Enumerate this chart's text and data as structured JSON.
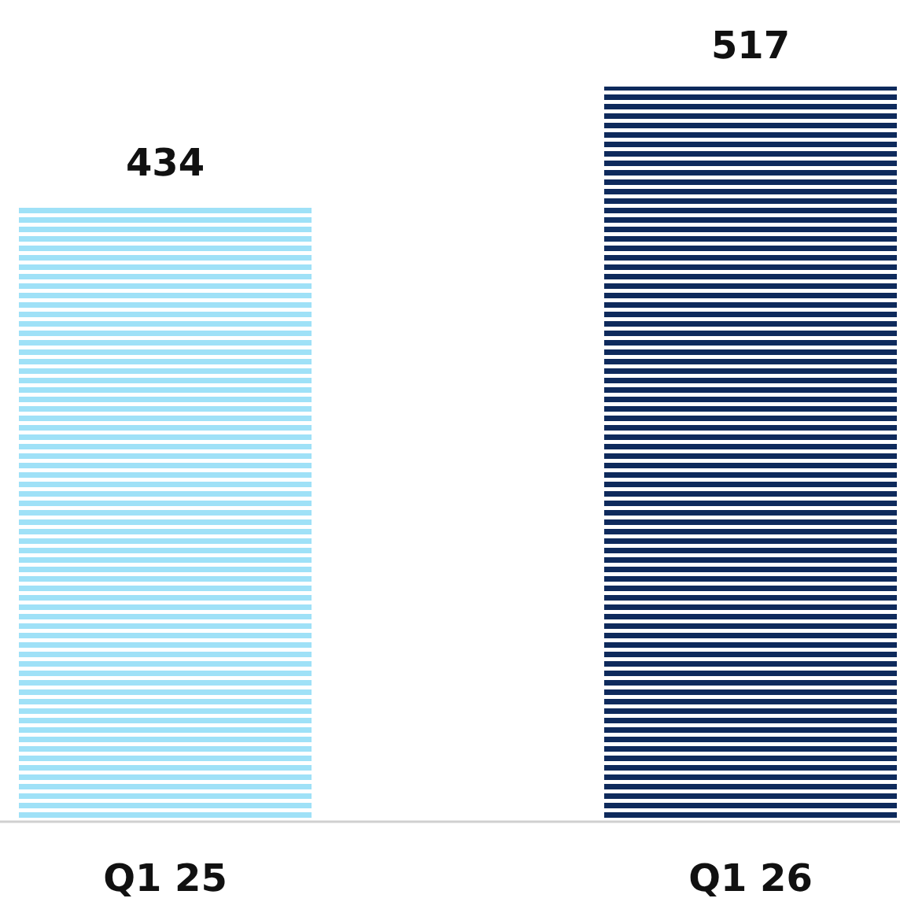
{
  "chart_data": {
    "type": "bar",
    "categories": [
      "Q1 25",
      "Q1 26"
    ],
    "values": [
      434,
      517
    ],
    "colors": [
      "#9fe1f7",
      "#0e2a5c"
    ],
    "data_labels": true
  }
}
